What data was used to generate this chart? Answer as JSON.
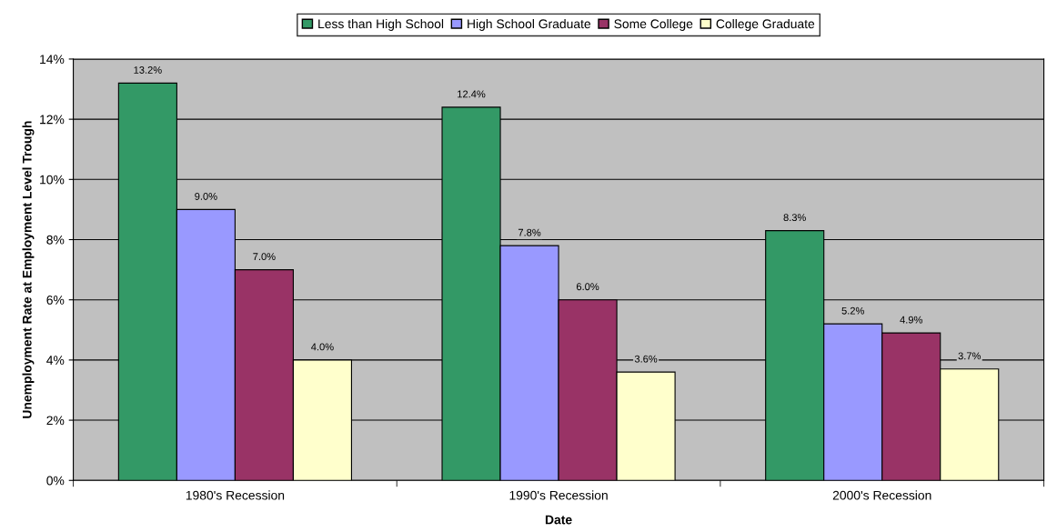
{
  "chart_data": {
    "type": "bar",
    "xlabel": "Date",
    "ylabel": "Unemployment Rate at Employment Level Trough",
    "categories": [
      "1980's Recession",
      "1990's Recession",
      "2000's Recession"
    ],
    "series": [
      {
        "name": "Less than High School",
        "color": "#339966",
        "values": [
          13.2,
          12.4,
          8.3
        ],
        "value_labels": [
          "13.2%",
          "12.4%",
          "8.3%"
        ]
      },
      {
        "name": "High School Graduate",
        "color": "#9999ff",
        "values": [
          9.0,
          7.8,
          5.2
        ],
        "value_labels": [
          "9.0%",
          "7.8%",
          "5.2%"
        ]
      },
      {
        "name": "Some College",
        "color": "#993366",
        "values": [
          7.0,
          6.0,
          4.9
        ],
        "value_labels": [
          "7.0%",
          "6.0%",
          "4.9%"
        ]
      },
      {
        "name": "College Graduate",
        "color": "#ffffcc",
        "values": [
          4.0,
          3.6,
          3.7
        ],
        "value_labels": [
          "4.0%",
          "3.6%",
          "3.7%"
        ]
      }
    ],
    "ylim": [
      0,
      14
    ],
    "yticks": [
      {
        "value": 0,
        "label": "0%"
      },
      {
        "value": 2,
        "label": "2%"
      },
      {
        "value": 4,
        "label": "4%"
      },
      {
        "value": 6,
        "label": "6%"
      },
      {
        "value": 8,
        "label": "8%"
      },
      {
        "value": 10,
        "label": "10%"
      },
      {
        "value": 12,
        "label": "12%"
      },
      {
        "value": 14,
        "label": "14%"
      }
    ],
    "grid": "y",
    "legend": "top"
  }
}
